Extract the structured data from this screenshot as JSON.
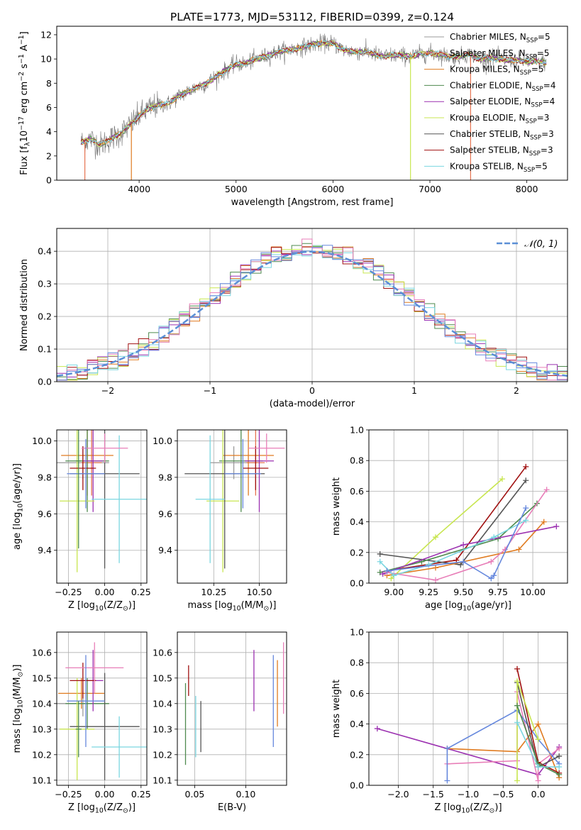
{
  "figure_title": "PLATE=1773, MJD=53112, FIBERID=0399, z=0.124",
  "colors": {
    "Chabrier MILES": "#999999",
    "Salpeter MILES": "#e67350",
    "Kroupa MILES": "#e07b20",
    "Chabrier ELODIE": "#4e8a4e",
    "Salpeter ELODIE": "#9b30b0",
    "Kroupa ELODIE": "#c8e650",
    "Chabrier STELIB": "#555555",
    "Salpeter STELIB": "#a01010",
    "Kroupa STELIB": "#7ad6e0",
    "pink": "#e87eb8",
    "blue": "#6688dd",
    "gauss": "#5b8fd6",
    "grid": "#b0b0b0"
  },
  "chart_data": [
    {
      "id": "spectrum",
      "type": "line",
      "xlabel": "wavelength [Angstrom, rest frame]",
      "ylabel": "Flux [fλ10⁻¹⁷ erg cm⁻² s⁻¹ A⁻¹]",
      "xlim": [
        3150,
        8420
      ],
      "ylim": [
        0,
        12.7
      ],
      "xticks": [
        4000,
        5000,
        6000,
        7000,
        8000
      ],
      "yticks": [
        0,
        2,
        4,
        6,
        8,
        10,
        12
      ],
      "grid": false,
      "legend_position": "right",
      "legend": [
        "Chabrier MILES, N_SSP=5",
        "Salpeter MILES, N_SSP=5",
        "Kroupa MILES, N_SSP=5",
        "Chabrier ELODIE, N_SSP=4",
        "Salpeter ELODIE, N_SSP=4",
        "Kroupa ELODIE, N_SSP=3",
        "Chabrier STELIB, N_SSP=3",
        "Salpeter STELIB, N_SSP=3",
        "Kroupa STELIB, N_SSP=5"
      ],
      "continuum": [
        [
          3400,
          3.1
        ],
        [
          3500,
          3.4
        ],
        [
          3600,
          2.9
        ],
        [
          3700,
          3.4
        ],
        [
          3800,
          3.8
        ],
        [
          3900,
          4.5
        ],
        [
          4000,
          5.3
        ],
        [
          4100,
          5.9
        ],
        [
          4200,
          6.2
        ],
        [
          4300,
          6.3
        ],
        [
          4400,
          6.9
        ],
        [
          4500,
          7.3
        ],
        [
          4600,
          7.7
        ],
        [
          4700,
          8.0
        ],
        [
          4800,
          8.6
        ],
        [
          4900,
          9.1
        ],
        [
          5000,
          9.6
        ],
        [
          5100,
          9.6
        ],
        [
          5200,
          10.0
        ],
        [
          5300,
          10.2
        ],
        [
          5400,
          10.5
        ],
        [
          5500,
          10.7
        ],
        [
          5600,
          10.8
        ],
        [
          5700,
          11.0
        ],
        [
          5800,
          11.2
        ],
        [
          5900,
          11.3
        ],
        [
          6000,
          11.3
        ],
        [
          6100,
          10.8
        ],
        [
          6200,
          10.6
        ],
        [
          6300,
          10.6
        ],
        [
          6400,
          10.5
        ],
        [
          6500,
          10.2
        ],
        [
          6600,
          10.3
        ],
        [
          6700,
          10.3
        ],
        [
          6800,
          10.2
        ],
        [
          6900,
          10.4
        ],
        [
          7000,
          10.5
        ],
        [
          7100,
          10.4
        ],
        [
          7200,
          10.2
        ],
        [
          7300,
          10.2
        ],
        [
          7400,
          10.4
        ],
        [
          7500,
          10.0
        ],
        [
          7600,
          10.1
        ],
        [
          7700,
          10.0
        ],
        [
          7800,
          9.9
        ],
        [
          7900,
          9.9
        ],
        [
          8000,
          9.8
        ],
        [
          8100,
          9.8
        ],
        [
          8200,
          9.7
        ]
      ],
      "drops": [
        {
          "model": "Salpeter MILES",
          "x": 3440
        },
        {
          "model": "Kroupa MILES",
          "x": 3920
        },
        {
          "model": "Kroupa ELODIE",
          "x": 6800
        },
        {
          "model": "Salpeter MILES",
          "x": 7420
        }
      ]
    },
    {
      "id": "residuals",
      "type": "histogram",
      "xlabel": "(data-model)/error",
      "ylabel": "Normed distribution",
      "xlim": [
        -2.5,
        2.5
      ],
      "ylim": [
        0,
        0.47
      ],
      "xticks": [
        -2,
        -1,
        0,
        1,
        2
      ],
      "yticks": [
        0.0,
        0.1,
        0.2,
        0.3,
        0.4
      ],
      "grid": true,
      "legend": [
        "𝒩(0, 1)"
      ],
      "legend_position": "top-right",
      "bin_width": 0.1,
      "bin_start": -2.5
    },
    {
      "id": "age_vs_Z",
      "type": "errorbar",
      "xlabel": "Z [log₁₀(Z/Z⊙)]",
      "ylabel": "age  [log₁₀(age/yr)]",
      "xlim": [
        -0.33,
        0.29
      ],
      "ylim": [
        9.22,
        10.06
      ],
      "xticks": [
        -0.25,
        0.0,
        0.25
      ],
      "yticks": [
        9.4,
        9.6,
        9.8,
        10.0
      ],
      "grid": true,
      "points": [
        {
          "model": "Chabrier MILES",
          "x": -0.15,
          "y": 9.88,
          "xerr": 0.18,
          "yerr": 0.09
        },
        {
          "model": "Salpeter MILES",
          "x": -0.09,
          "y": 9.88,
          "xerr": 0.07,
          "yerr": 0.18
        },
        {
          "model": "Kroupa MILES",
          "x": -0.12,
          "y": 9.92,
          "xerr": 0.18,
          "yerr": 0.22
        },
        {
          "model": "Chabrier ELODIE",
          "x": -0.12,
          "y": 9.89,
          "xerr": 0.15,
          "yerr": 0.28
        },
        {
          "model": "Salpeter ELODIE",
          "x": -0.08,
          "y": 9.89,
          "xerr": 0.07,
          "yerr": 0.28
        },
        {
          "model": "Kroupa ELODIE",
          "x": -0.19,
          "y": 9.67,
          "xerr": 0.12,
          "yerr": 0.39
        },
        {
          "model": "Chabrier STELIB",
          "x": 0.0,
          "y": 9.82,
          "xerr": 0.24,
          "yerr": 0.52
        },
        {
          "model": "Salpeter STELIB",
          "x": -0.15,
          "y": 9.85,
          "xerr": 0.09,
          "yerr": 0.12
        },
        {
          "model": "Kroupa STELIB",
          "x": 0.1,
          "y": 9.68,
          "xerr": 0.19,
          "yerr": 0.35
        },
        {
          "model": "pink",
          "x": 0.0,
          "y": 9.96,
          "xerr": 0.16,
          "yerr": 0.08
        },
        {
          "model": "blue",
          "x": -0.13,
          "y": 9.82,
          "xerr": 0.13,
          "yerr": 0.19
        },
        {
          "model": "Chabrier ELODIE",
          "x": -0.18,
          "y": 9.89,
          "xerr": 0.02,
          "yerr": 0.48
        }
      ]
    },
    {
      "id": "age_vs_mass",
      "type": "errorbar",
      "xlabel": "mass [log₁₀(M/M⊙)]",
      "ylabel": "",
      "xlim": [
        10.05,
        10.65
      ],
      "ylim": [
        9.22,
        10.06
      ],
      "xticks": [
        10.25,
        10.5
      ],
      "yticks": [
        9.4,
        9.6,
        9.8,
        10.0
      ],
      "grid": true,
      "points": [
        {
          "model": "Chabrier MILES",
          "x": 10.36,
          "y": 9.88,
          "xerr": 0.13,
          "yerr": 0.09
        },
        {
          "model": "Salpeter MILES",
          "x": 10.48,
          "y": 9.88,
          "xerr": 0.05,
          "yerr": 0.18
        },
        {
          "model": "Kroupa MILES",
          "x": 10.44,
          "y": 9.92,
          "xerr": 0.14,
          "yerr": 0.22
        },
        {
          "model": "Chabrier ELODIE",
          "x": 10.4,
          "y": 9.89,
          "xerr": 0.12,
          "yerr": 0.28
        },
        {
          "model": "Salpeter ELODIE",
          "x": 10.5,
          "y": 9.89,
          "xerr": 0.08,
          "yerr": 0.28
        },
        {
          "model": "Kroupa ELODIE",
          "x": 10.3,
          "y": 9.67,
          "xerr": 0.09,
          "yerr": 0.39
        },
        {
          "model": "Chabrier STELIB",
          "x": 10.31,
          "y": 9.82,
          "xerr": 0.22,
          "yerr": 0.52
        },
        {
          "model": "Salpeter STELIB",
          "x": 10.48,
          "y": 9.85,
          "xerr": 0.07,
          "yerr": 0.12
        },
        {
          "model": "Kroupa STELIB",
          "x": 10.23,
          "y": 9.68,
          "xerr": 0.08,
          "yerr": 0.35
        },
        {
          "model": "pink",
          "x": 10.54,
          "y": 9.96,
          "xerr": 0.1,
          "yerr": 0.08
        },
        {
          "model": "blue",
          "x": 10.41,
          "y": 9.82,
          "xerr": 0.1,
          "yerr": 0.19
        }
      ]
    },
    {
      "id": "massweight_vs_age",
      "type": "line",
      "xlabel": "age  [log₁₀(age/yr)]",
      "ylabel": "mass weight",
      "xlim": [
        8.82,
        10.25
      ],
      "ylim": [
        0,
        1.0
      ],
      "xticks": [
        9.0,
        9.25,
        9.5,
        9.75,
        10.0
      ],
      "yticks": [
        0.0,
        0.2,
        0.4,
        0.6,
        0.8,
        1.0
      ],
      "grid": true,
      "series": [
        {
          "model": "Kroupa ELODIE",
          "x": [
            8.98,
            9.3,
            9.78
          ],
          "y": [
            0.03,
            0.3,
            0.68
          ]
        },
        {
          "model": "Salpeter STELIB",
          "x": [
            8.95,
            9.45,
            9.95
          ],
          "y": [
            0.08,
            0.15,
            0.76
          ]
        },
        {
          "model": "Chabrier STELIB",
          "x": [
            8.9,
            9.48,
            9.95
          ],
          "y": [
            0.19,
            0.12,
            0.67
          ]
        },
        {
          "model": "Chabrier ELODIE",
          "x": [
            8.9,
            9.2,
            9.75,
            10.03
          ],
          "y": [
            0.07,
            0.14,
            0.29,
            0.52
          ]
        },
        {
          "model": "Kroupa MILES",
          "x": [
            8.95,
            9.3,
            9.9,
            10.08
          ],
          "y": [
            0.05,
            0.1,
            0.22,
            0.4
          ]
        },
        {
          "model": "Salpeter ELODIE",
          "x": [
            8.92,
            9.5,
            10.17
          ],
          "y": [
            0.06,
            0.25,
            0.37
          ]
        },
        {
          "model": "pink",
          "x": [
            8.95,
            9.3,
            9.7,
            9.8,
            10.1
          ],
          "y": [
            0.07,
            0.02,
            0.14,
            0.22,
            0.61
          ]
        },
        {
          "model": "Kroupa STELIB",
          "x": [
            8.9,
            9.0,
            9.25,
            9.72,
            9.95
          ],
          "y": [
            0.14,
            0.05,
            0.12,
            0.3,
            0.41
          ]
        },
        {
          "model": "blue",
          "x": [
            8.95,
            9.5,
            9.7,
            9.72,
            9.95
          ],
          "y": [
            0.08,
            0.14,
            0.03,
            0.05,
            0.49
          ]
        }
      ]
    },
    {
      "id": "mass_vs_Z",
      "type": "errorbar",
      "xlabel": "Z [log₁₀(Z/Z⊙)]",
      "ylabel": "mass [log₁₀(M/M⊙)]",
      "xlim": [
        -0.33,
        0.29
      ],
      "ylim": [
        10.08,
        10.68
      ],
      "xticks": [
        -0.25,
        0.0,
        0.25
      ],
      "yticks": [
        10.1,
        10.2,
        10.3,
        10.4,
        10.5,
        10.6
      ],
      "grid": true,
      "points": [
        {
          "model": "Chabrier MILES",
          "x": -0.15,
          "y": 10.4,
          "xerr": 0.18,
          "yerr": 0.05
        },
        {
          "model": "Kroupa MILES",
          "x": -0.16,
          "y": 10.44,
          "xerr": 0.16,
          "yerr": 0.06
        },
        {
          "model": "Chabrier ELODIE",
          "x": -0.12,
          "y": 10.4,
          "xerr": 0.15,
          "yerr": 0.1
        },
        {
          "model": "Salpeter ELODIE",
          "x": -0.08,
          "y": 10.49,
          "xerr": 0.07,
          "yerr": 0.12
        },
        {
          "model": "Kroupa ELODIE",
          "x": -0.19,
          "y": 10.3,
          "xerr": 0.12,
          "yerr": 0.2
        },
        {
          "model": "Chabrier STELIB",
          "x": 0.0,
          "y": 10.31,
          "xerr": 0.24,
          "yerr": 0.21
        },
        {
          "model": "Salpeter STELIB",
          "x": -0.15,
          "y": 10.49,
          "xerr": 0.09,
          "yerr": 0.07
        },
        {
          "model": "Kroupa STELIB",
          "x": 0.1,
          "y": 10.23,
          "xerr": 0.19,
          "yerr": 0.12
        },
        {
          "model": "pink",
          "x": -0.07,
          "y": 10.54,
          "xerr": 0.2,
          "yerr": 0.1
        },
        {
          "model": "blue",
          "x": -0.13,
          "y": 10.41,
          "xerr": 0.13,
          "yerr": 0.18
        },
        {
          "model": "Chabrier ELODIE",
          "x": -0.18,
          "y": 10.3,
          "xerr": 0.02,
          "yerr": 0.11
        }
      ]
    },
    {
      "id": "mass_vs_ebv",
      "type": "errorbar",
      "xlabel": "E(B-V)",
      "ylabel": "",
      "xlim": [
        0.033,
        0.14
      ],
      "ylim": [
        10.08,
        10.68
      ],
      "xticks": [
        0.05,
        0.1
      ],
      "yticks": [
        10.1,
        10.2,
        10.3,
        10.4,
        10.5,
        10.6
      ],
      "grid": true,
      "points": [
        {
          "model": "Chabrier ELODIE",
          "x": 0.041,
          "y": 10.32,
          "xerr": 0,
          "yerr": 0.16
        },
        {
          "model": "Salpeter STELIB",
          "x": 0.044,
          "y": 10.49,
          "xerr": 0,
          "yerr": 0.06
        },
        {
          "model": "Kroupa STELIB",
          "x": 0.051,
          "y": 10.31,
          "xerr": 0,
          "yerr": 0.12
        },
        {
          "model": "Chabrier STELIB",
          "x": 0.056,
          "y": 10.31,
          "xerr": 0,
          "yerr": 0.1
        },
        {
          "model": "Salpeter ELODIE",
          "x": 0.108,
          "y": 10.49,
          "xerr": 0,
          "yerr": 0.12
        },
        {
          "model": "blue",
          "x": 0.127,
          "y": 10.41,
          "xerr": 0,
          "yerr": 0.18
        },
        {
          "model": "Kroupa MILES",
          "x": 0.131,
          "y": 10.44,
          "xerr": 0,
          "yerr": 0.13
        },
        {
          "model": "pink",
          "x": 0.137,
          "y": 10.5,
          "xerr": 0,
          "yerr": 0.14
        }
      ]
    },
    {
      "id": "massweight_vs_Z",
      "type": "line",
      "xlabel": "Z [log₁₀(Z/Z⊙)]",
      "ylabel": "mass weight",
      "xlim": [
        -2.42,
        0.42
      ],
      "ylim": [
        0,
        1.0
      ],
      "xticks": [
        -2.0,
        -1.5,
        -1.0,
        -0.5,
        0.0
      ],
      "yticks": [
        0.0,
        0.2,
        0.4,
        0.6,
        0.8,
        1.0
      ],
      "grid": true,
      "series": [
        {
          "model": "Salpeter ELODIE",
          "x": [
            -2.3,
            0.0,
            0.3
          ],
          "y": [
            0.37,
            0.07,
            0.25
          ]
        },
        {
          "model": "Kroupa MILES",
          "x": [
            -1.3,
            -0.3,
            0.0,
            0.3
          ],
          "y": [
            0.24,
            0.22,
            0.4,
            0.05
          ]
        },
        {
          "model": "pink",
          "x": [
            -1.3,
            -0.3,
            -0.3,
            0.0,
            0.0,
            0.3
          ],
          "y": [
            0.14,
            0.16,
            0.61,
            0.03,
            0.14,
            0.24
          ]
        },
        {
          "model": "blue",
          "x": [
            -1.3,
            -1.3,
            -0.3,
            0.0,
            0.3
          ],
          "y": [
            0.03,
            0.24,
            0.49,
            0.3,
            0.14
          ]
        },
        {
          "model": "Salpeter STELIB",
          "x": [
            -0.3,
            0.0,
            0.3
          ],
          "y": [
            0.76,
            0.15,
            0.08
          ]
        },
        {
          "model": "Chabrier STELIB",
          "x": [
            -0.3,
            0.0,
            0.3
          ],
          "y": [
            0.67,
            0.12,
            0.19
          ]
        },
        {
          "model": "Kroupa ELODIE",
          "x": [
            -0.3,
            -0.3,
            0.0
          ],
          "y": [
            0.03,
            0.68,
            0.3
          ]
        },
        {
          "model": "Chabrier ELODIE",
          "x": [
            -0.3,
            0.0,
            0.3
          ],
          "y": [
            0.52,
            0.14,
            0.07
          ]
        },
        {
          "model": "Kroupa STELIB",
          "x": [
            -0.3,
            0.0,
            0.3
          ],
          "y": [
            0.41,
            0.12,
            0.12
          ]
        }
      ]
    }
  ]
}
